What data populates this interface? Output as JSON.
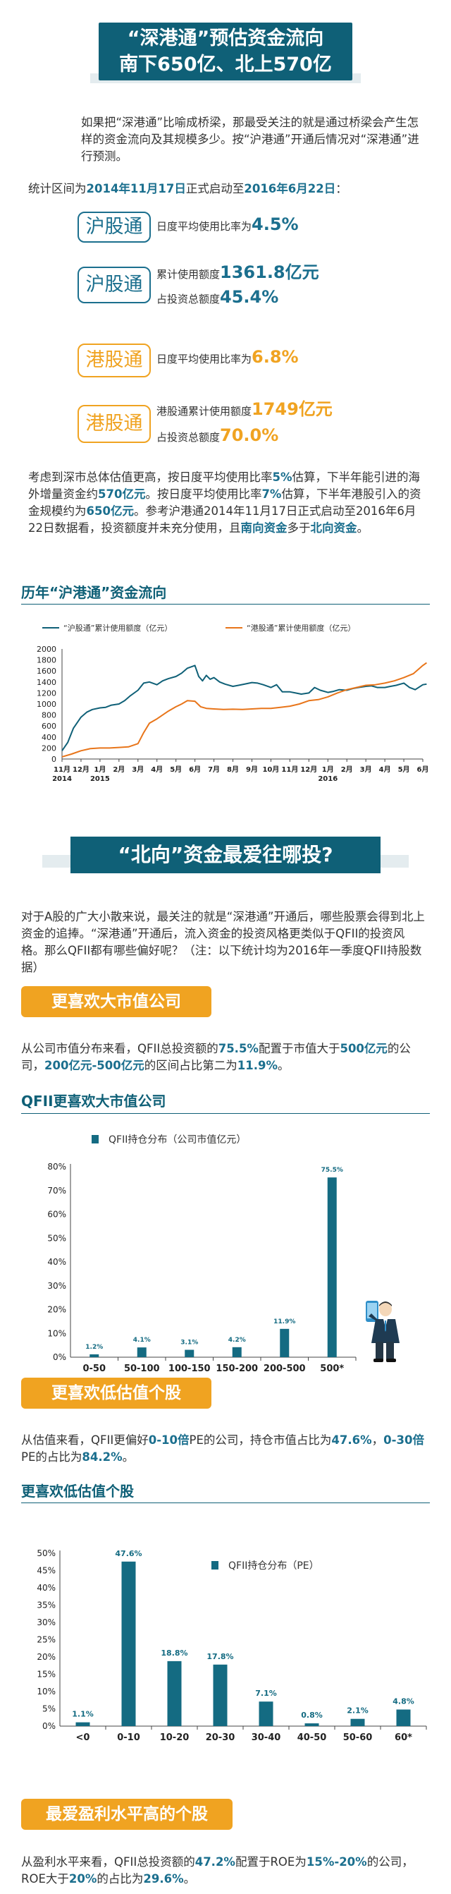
{
  "title": {
    "line1": "“深港通”预估资金流向",
    "line2": "南下650亿、北上570亿"
  },
  "intro": "如果把“深港通”比喻成桥梁，那最受关注的就是通过桥梁会产生怎样的资金流向及其规模多少。按“沪港通”开通后情况对“深港通”进行预测。",
  "period": {
    "prefix": "统计区间为",
    "start": "2014年11月17日",
    "mid": "正式启动至",
    "end": "2016年6月22日",
    "suffix": "："
  },
  "stats": {
    "hu1": {
      "tag": "沪股通",
      "label": "日度平均使用比率为",
      "value": "4.5%"
    },
    "hu2": {
      "tag": "沪股通",
      "label1": "累计使用额度",
      "value1": "1361.8亿元",
      "label2": "占投资总额度",
      "value2": "45.4%"
    },
    "gang1": {
      "tag": "港股通",
      "label": "日度平均使用比率为",
      "value": "6.8%"
    },
    "gang2": {
      "tag": "港股通",
      "label1": "港股通累计使用额度",
      "value1": "1749亿元",
      "label2": "占投资总额度",
      "value2": "70.0%"
    }
  },
  "forecast": {
    "t1": "考虑到深市总体估值更高，按日度平均使用比率",
    "v1": "5%",
    "t2": "估算，下半年能引进的海外增量资金约",
    "v2": "570亿元",
    "t3": "。按日度平均使用比率",
    "v3": "7%",
    "t4": "估算，下半年港股引入的资金规模约为",
    "v4": "650亿元",
    "t5": "。参考沪港通2014年11月17日正式启动至2016年6月22日数据看，投资额度并未充分使用，且",
    "v5": "南向资金",
    "t6": "多于",
    "v6": "北向资金",
    "t7": "。"
  },
  "line_section_title": "历年“沪港通”资金流向",
  "north_title": "“北向”资金最爱往哪投?",
  "north_intro": "对于A股的广大小散来说，最关注的就是“深港通”开通后，哪些股票会得到北上资金的追捧。“深港通”开通后，流入资金的投资风格更类似于QFII的投资风格。那么QFII都有哪些偏好呢？（注：以下统计均为2016年一季度QFII持股数据）",
  "sec1": {
    "button": "更喜欢大市值公司",
    "t1": "从公司市值分布来看，QFII总投资额的",
    "v1": "75.5%",
    "t2": "配置于市值大于",
    "v2": "500亿元",
    "t3": "的公司，",
    "v3": "200亿元-500亿元",
    "t4": "的区间占比第二为",
    "v4": "11.9%",
    "t5": "。",
    "heading": "QFII更喜欢大市值公司"
  },
  "sec2": {
    "button": "更喜欢低估值个股",
    "t1": "从估值来看，QFII更偏好",
    "v1": "0-10倍",
    "t2": "PE的公司，持仓市值占比为",
    "v2": "47.6%",
    "t3": "，",
    "v3": "0-30倍",
    "t4": "PE的占比为",
    "v4": "84.2%",
    "t5": "。",
    "heading": "更喜欢低估值个股"
  },
  "sec3": {
    "button": "最爱盈利水平高的个股",
    "t1": "从盈利水平来看，QFII总投资额的",
    "v1": "47.2%",
    "t2": "配置于ROE为",
    "v2": "15%-20%",
    "t3": "的公司，ROE大于",
    "v3": "20%",
    "t4": "的占比为",
    "v4": "29.6%",
    "t5": "。"
  },
  "colors": {
    "navy": "#0f6077",
    "blue": "#1b6f8e",
    "orange": "#f0a321",
    "line_orange": "#e8751a"
  },
  "chart_data": [
    {
      "type": "line",
      "title": "历年“沪港通”资金流向",
      "ylim": [
        0,
        2000
      ],
      "yticks": [
        0,
        200,
        400,
        600,
        800,
        1000,
        1200,
        1400,
        1600,
        1800,
        2000
      ],
      "x_labels": [
        {
          "m": "11月",
          "y": "2014"
        },
        {
          "m": "12月",
          "y": ""
        },
        {
          "m": "1月",
          "y": "2015"
        },
        {
          "m": "2月",
          "y": ""
        },
        {
          "m": "3月",
          "y": ""
        },
        {
          "m": "4月",
          "y": ""
        },
        {
          "m": "5月",
          "y": ""
        },
        {
          "m": "6月",
          "y": ""
        },
        {
          "m": "7月",
          "y": ""
        },
        {
          "m": "8月",
          "y": ""
        },
        {
          "m": "9月",
          "y": ""
        },
        {
          "m": "10月",
          "y": ""
        },
        {
          "m": "11月",
          "y": ""
        },
        {
          "m": "12月",
          "y": ""
        },
        {
          "m": "1月",
          "y": "2016"
        },
        {
          "m": "2月",
          "y": ""
        },
        {
          "m": "3月",
          "y": ""
        },
        {
          "m": "4月",
          "y": ""
        },
        {
          "m": "5月",
          "y": ""
        },
        {
          "m": "6月",
          "y": ""
        }
      ],
      "series": [
        {
          "name": "“沪股通”累计使用额度（亿元）",
          "color": "#0f6077",
          "x": [
            0,
            0.3,
            0.6,
            1,
            1.3,
            1.6,
            2,
            2.3,
            2.6,
            3,
            3.3,
            3.6,
            4,
            4.3,
            4.6,
            5,
            5.3,
            5.6,
            6,
            6.3,
            6.6,
            7,
            7.2,
            7.4,
            7.6,
            7.8,
            8,
            8.3,
            8.6,
            9,
            9.3,
            9.6,
            10,
            10.3,
            10.6,
            11,
            11.3,
            11.6,
            12,
            12.3,
            12.6,
            13,
            13.3,
            13.6,
            14,
            14.3,
            14.6,
            15,
            15.3,
            15.6,
            16,
            16.3,
            16.6,
            17,
            17.3,
            17.6,
            18,
            18.3,
            18.6,
            19,
            19.2
          ],
          "values": [
            150,
            300,
            560,
            760,
            850,
            900,
            930,
            940,
            980,
            1000,
            1060,
            1150,
            1250,
            1380,
            1400,
            1350,
            1420,
            1460,
            1500,
            1560,
            1650,
            1700,
            1500,
            1420,
            1520,
            1450,
            1480,
            1400,
            1360,
            1320,
            1340,
            1360,
            1390,
            1380,
            1350,
            1300,
            1350,
            1220,
            1220,
            1200,
            1180,
            1200,
            1300,
            1250,
            1210,
            1230,
            1260,
            1250,
            1280,
            1300,
            1320,
            1330,
            1300,
            1300,
            1320,
            1340,
            1380,
            1300,
            1260,
            1350,
            1362
          ]
        },
        {
          "name": "“港股通”累计使用额度（亿元）",
          "color": "#e8751a",
          "x": [
            0,
            0.5,
            1,
            1.5,
            2,
            2.5,
            3,
            3.5,
            4,
            4.3,
            4.6,
            5,
            5.3,
            5.6,
            6,
            6.3,
            6.6,
            7,
            7.3,
            7.6,
            8,
            8.5,
            9,
            9.5,
            10,
            10.5,
            11,
            11.5,
            12,
            12.5,
            13,
            13.5,
            14,
            14.5,
            15,
            15.5,
            16,
            16.5,
            17,
            17.5,
            18,
            18.5,
            19,
            19.2
          ],
          "values": [
            40,
            90,
            150,
            190,
            200,
            200,
            210,
            220,
            280,
            480,
            650,
            730,
            800,
            870,
            950,
            1000,
            1060,
            1050,
            950,
            920,
            910,
            900,
            905,
            900,
            910,
            920,
            920,
            940,
            960,
            1000,
            1060,
            1080,
            1130,
            1200,
            1260,
            1300,
            1340,
            1350,
            1380,
            1420,
            1480,
            1550,
            1700,
            1749
          ]
        }
      ]
    },
    {
      "type": "bar",
      "title": "QFII更喜欢大市值公司",
      "categories": [
        "0-50",
        "50-100",
        "100-150",
        "150-200",
        "200-500",
        "500*"
      ],
      "series": [
        {
          "name": "QFII持仓分布（公司市值亿元）",
          "values": [
            1.2,
            4.1,
            3.1,
            4.2,
            11.9,
            75.5
          ]
        }
      ],
      "ylim": [
        0,
        80
      ],
      "yticks": [
        0,
        10,
        20,
        30,
        40,
        50,
        60,
        70,
        80
      ],
      "labels": [
        "1.2%",
        "4.1%",
        "3.1%",
        "4.2%",
        "11.9%",
        "75.5%"
      ]
    },
    {
      "type": "bar",
      "title": "更喜欢低估值个股",
      "categories": [
        "<0",
        "0-10",
        "10-20",
        "20-30",
        "30-40",
        "40-50",
        "50-60",
        "60*"
      ],
      "series": [
        {
          "name": "QFII持仓分布（PE）",
          "values": [
            1.1,
            47.6,
            18.8,
            17.8,
            7.1,
            0.8,
            2.1,
            4.8
          ]
        }
      ],
      "ylim": [
        0,
        50
      ],
      "yticks": [
        0,
        5,
        10,
        15,
        20,
        25,
        30,
        35,
        40,
        45,
        50
      ],
      "labels": [
        "1.1%",
        "47.6%",
        "18.8%",
        "17.8%",
        "7.1%",
        "0.8%",
        "2.1%",
        "4.8%"
      ]
    }
  ]
}
